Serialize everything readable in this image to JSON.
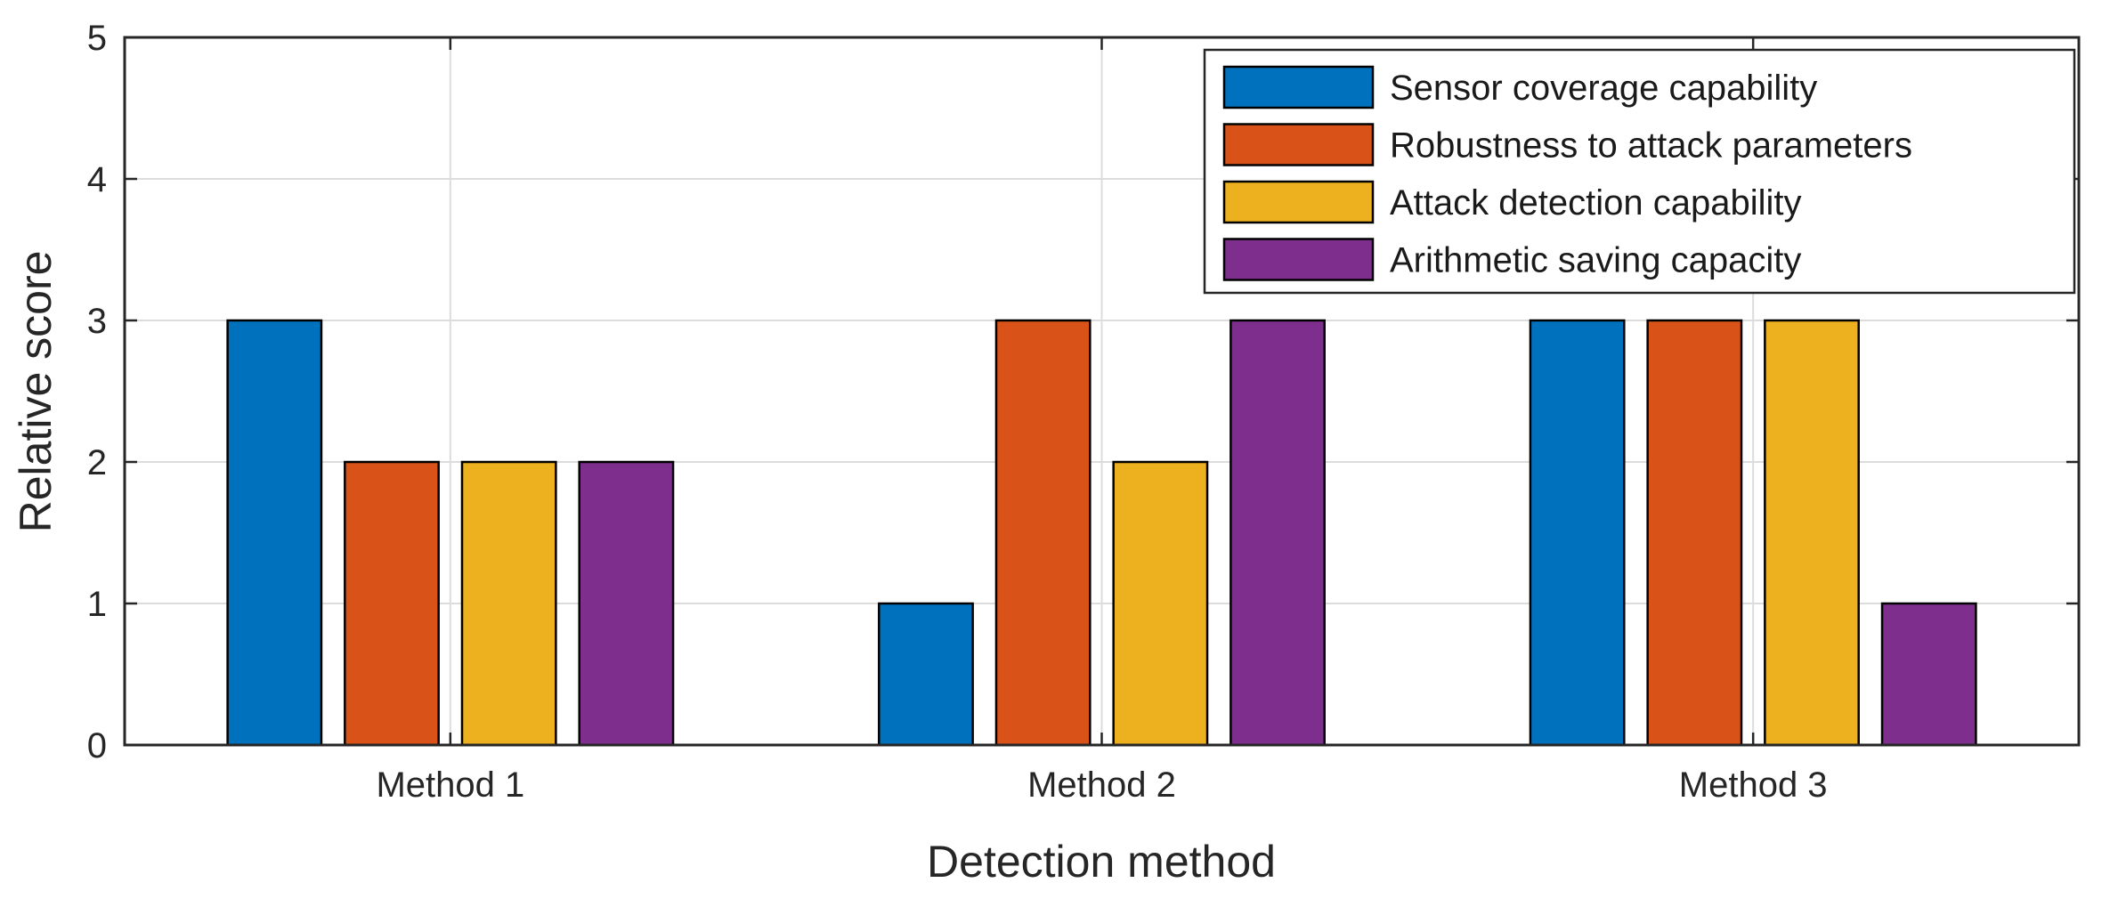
{
  "chart_data": {
    "type": "bar",
    "title": "",
    "xlabel": "Detection method",
    "ylabel": "Relative score",
    "categories": [
      "Method 1",
      "Method 2",
      "Method 3"
    ],
    "ylim": [
      0,
      5
    ],
    "yticks": [
      0,
      1,
      2,
      3,
      4,
      5
    ],
    "grid": true,
    "legend_position": "top-right",
    "series": [
      {
        "name": "Sensor coverage capability",
        "color": "#0072BD",
        "values": [
          3,
          1,
          3
        ]
      },
      {
        "name": "Robustness to attack parameters",
        "color": "#D95319",
        "values": [
          2,
          3,
          3
        ]
      },
      {
        "name": "Attack detection capability",
        "color": "#EDB120",
        "values": [
          2,
          2,
          3
        ]
      },
      {
        "name": "Arithmetic saving capacity",
        "color": "#7E2F8E",
        "values": [
          2,
          3,
          1
        ]
      }
    ]
  }
}
